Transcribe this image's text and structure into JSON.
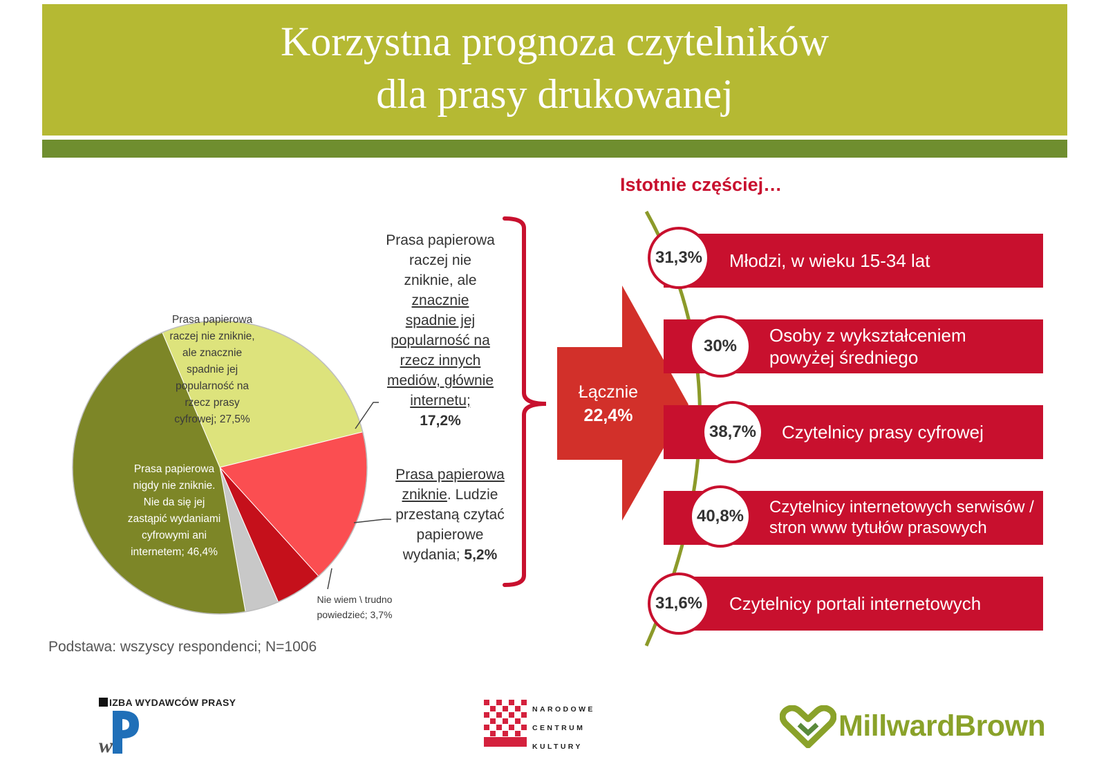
{
  "header": {
    "title_line1": "Korzystna prognoza czytelników",
    "title_line2": "dla prasy drukowanej"
  },
  "chart_data": {
    "type": "pie",
    "slices": [
      {
        "label": "Prasa papierowa nigdy nie zniknie. Nie da się jej zastąpić wydaniami cyfrowymi ani internetem",
        "value": 46.4,
        "display": "46,4%",
        "color": "#7d8627"
      },
      {
        "label": "Prasa papierowa raczej nie zniknie, ale znacznie spadnie jej popularność na rzecz prasy cyfrowej",
        "value": 27.5,
        "display": "27,5%",
        "color": "#dde37c"
      },
      {
        "label": "Prasa papierowa raczej nie zniknie, ale znacznie spadnie jej popularność na rzecz innych mediów, głównie internetu",
        "value": 17.2,
        "display": "17,2%",
        "color": "#fb4e51"
      },
      {
        "label": "Prasa papierowa zniknie. Ludzie przestaną czytać papierowe wydania",
        "value": 5.2,
        "display": "5,2%",
        "color": "#c5101b"
      },
      {
        "label": "Nie wiem \\ trudno powiedzieć",
        "value": 3.7,
        "display": "3,7%",
        "color": "#c8c8c8"
      }
    ]
  },
  "pie_labels": {
    "cyfrowa": [
      "Prasa papierowa",
      "raczej nie zniknie,",
      "ale znacznie",
      "spadnie jej",
      "popularność na",
      "rzecz prasy",
      "cyfrowej; 27,5%"
    ],
    "nigdy": [
      "Prasa papierowa",
      "nigdy nie zniknie.",
      "Nie da się jej",
      "zastąpić wydaniami",
      "cyfrowymi ani",
      "internetem; 46,4%"
    ],
    "niewiem": [
      "Nie wiem \\ trudno",
      "powiedzieć; 3,7%"
    ]
  },
  "side_labels": {
    "internet": {
      "lines_plain": [
        "Prasa papierowa",
        "raczej nie",
        "zniknie, ale"
      ],
      "lines_underlined": [
        "znacznie",
        "spadnie jej",
        "popularność na",
        "rzecz innych",
        "mediów, głównie",
        "internetu;"
      ],
      "value": "17,2%"
    },
    "zniknie": {
      "underlined_1": "Prasa papierowa",
      "underlined_2": "zniknie",
      "rest_2": ". Ludzie",
      "line3": "przestaną czytać",
      "line4": "papierowe",
      "line5_prefix": "wydania;",
      "value": "5,2%"
    }
  },
  "base_note": "Podstawa: wszyscy respondenci; N=1006",
  "arrow": {
    "line1": "Łącznie",
    "line2": "22,4%"
  },
  "right": {
    "header": "Istotnie częściej…",
    "items": [
      {
        "value": "31,3%",
        "label_1": "Młodzi, w wieku 15-34 lat",
        "label_2": ""
      },
      {
        "value": "30%",
        "label_1": "Osoby z wykształceniem",
        "label_2": "powyżej średniego"
      },
      {
        "value": "38,7%",
        "label_1": "Czytelnicy prasy cyfrowej",
        "label_2": ""
      },
      {
        "value": "40,8%",
        "label_1": "Czytelnicy internetowych serwisów /",
        "label_2": "stron www tytułów prasowych"
      },
      {
        "value": "31,6%",
        "label_1": "Czytelnicy portali internetowych",
        "label_2": ""
      }
    ]
  },
  "logos": {
    "izba": "IZBA WYDAWCÓW PRASY",
    "ncku": [
      "NARODOWE",
      "CENTRUM",
      "KULTURY"
    ],
    "millward": "MillwardBrown"
  },
  "colors": {
    "header": "#b5b933",
    "stripe": "#6f8e2f",
    "accent_red": "#c8102e",
    "arrow": "#d2302a"
  }
}
